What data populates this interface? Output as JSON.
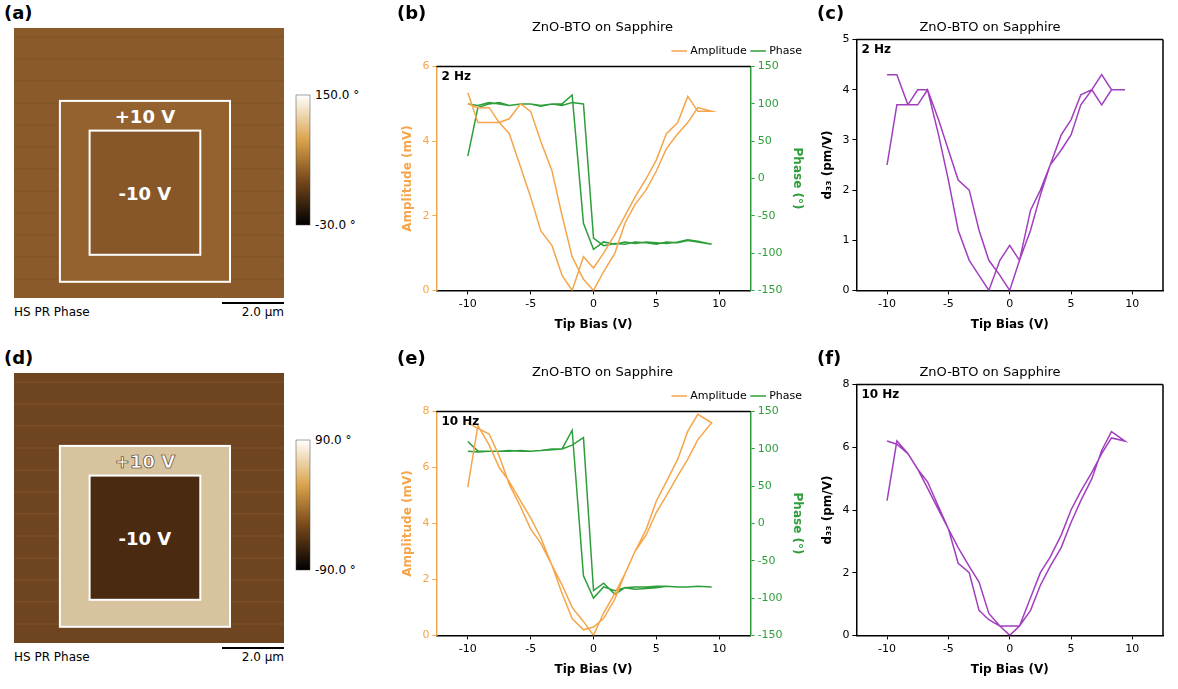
{
  "images": [
    {
      "panel": "(a)",
      "title": "HS PR Phase",
      "scale_bar": "2.0 µm",
      "colorbar": {
        "range": [
          -30,
          150
        ],
        "ticks": [
          {
            "value": 150,
            "label": "150.0 °"
          },
          {
            "value": -30,
            "label": "-30.0 °"
          }
        ]
      },
      "boxes": [
        "+10 V",
        "-10 V"
      ]
    },
    {
      "panel": "(d)",
      "title": "HS PR Phase",
      "scale_bar": "2.0 µm",
      "colorbar": {
        "range": [
          -90,
          90
        ],
        "ticks": [
          {
            "value": 90,
            "label": "90.0 °"
          },
          {
            "value": -90,
            "label": "-90.0 °"
          }
        ]
      },
      "boxes": [
        "+10 V",
        "-10 V"
      ]
    }
  ],
  "chart_data": [
    {
      "panel": "(b)",
      "type": "line",
      "title": "ZnO-BTO on Sapphire",
      "annotation": "2 Hz",
      "x_label": "Tip Bias (V)",
      "y_label": "Amplitude (mV)",
      "y2_label": "Phase (°)",
      "x": [
        -10,
        -9.2,
        -8.3,
        -7.5,
        -6.7,
        -5.8,
        -5,
        -4.2,
        -3.3,
        -2.5,
        -1.7,
        -0.8,
        0,
        0.8,
        1.7,
        2.5,
        3.3,
        4.2,
        5,
        5.8,
        6.7,
        7.5,
        8.3,
        9.4,
        8.3,
        7.5,
        6.7,
        5.8,
        5,
        4.2,
        3.3,
        2.5,
        1.7,
        0.8,
        0,
        -0.8,
        -1.7,
        -2.5,
        -3.3,
        -4.2,
        -5,
        -5.8,
        -6.7,
        -7.5,
        -8.3,
        -9.2,
        -10
      ],
      "series": [
        {
          "name": "Amplitude",
          "color": "#f5a54a",
          "values": [
            5.3,
            4.5,
            4.5,
            4.5,
            4.2,
            3.3,
            2.5,
            1.6,
            1.2,
            0.4,
            0,
            0.9,
            0.6,
            1.0,
            1.5,
            2.0,
            2.5,
            3.0,
            3.5,
            4.2,
            4.5,
            5.2,
            4.8,
            4.8,
            4.9,
            4.5,
            4.2,
            3.8,
            3.2,
            2.7,
            2.3,
            1.8,
            1.0,
            0.5,
            0,
            0.3,
            0.9,
            2.0,
            3.2,
            4.0,
            4.8,
            5.0,
            4.6,
            4.5,
            4.9,
            4.9,
            5.0
          ]
        },
        {
          "name": "Phase",
          "color": "#2e9e3a",
          "axis": "y2",
          "values": [
            30,
            95,
            100,
            102,
            98,
            100,
            100,
            98,
            100,
            100,
            112,
            -60,
            -95,
            -85,
            -88,
            -85,
            -87,
            -85,
            -86,
            -87,
            -85,
            -82,
            -84,
            -88,
            -85,
            -83,
            -86,
            -85,
            -88,
            -86,
            -85,
            -88,
            -87,
            -90,
            -80,
            100,
            102,
            98,
            100,
            97,
            100,
            100,
            98,
            100,
            102,
            98,
            100
          ]
        }
      ],
      "xlim": [
        -12.5,
        12.5
      ],
      "xticks": [
        -10,
        -5,
        0,
        5,
        10
      ],
      "ylim": [
        0,
        6
      ],
      "yticks": [
        0,
        2,
        4,
        6
      ],
      "y2lim": [
        -150,
        150
      ],
      "y2ticks": [
        -150,
        -100,
        -50,
        0,
        50,
        100,
        150
      ],
      "legend": "top-right",
      "grid": false
    },
    {
      "panel": "(c)",
      "type": "line",
      "title": "ZnO-BTO on Sapphire",
      "annotation": "2 Hz",
      "x_label": "Tip Bias (V)",
      "y_label": "d₃₃ (pm/V)",
      "x": [
        -10,
        -9.2,
        -8.3,
        -7.5,
        -6.7,
        -5.8,
        -5,
        -4.2,
        -3.3,
        -2.5,
        -1.7,
        -0.8,
        0,
        0.8,
        1.7,
        2.5,
        3.3,
        4.2,
        5,
        5.8,
        6.7,
        7.5,
        8.3,
        9.4,
        8.3,
        7.5,
        6.7,
        5.8,
        5,
        4.2,
        3.3,
        2.5,
        1.7,
        0.8,
        0,
        -0.8,
        -1.7,
        -2.5,
        -3.3,
        -4.2,
        -5,
        -5.8,
        -6.7,
        -7.5,
        -8.3,
        -9.2,
        -10
      ],
      "series": [
        {
          "name": "d₃₃",
          "color": "#a23fbf",
          "values": [
            2.5,
            3.7,
            3.7,
            4.0,
            4.0,
            3.1,
            2.2,
            1.2,
            0.6,
            0.3,
            0,
            0.6,
            0.9,
            0.6,
            1.6,
            2.0,
            2.5,
            3.1,
            3.4,
            3.9,
            4.0,
            4.3,
            4.0,
            4.0,
            4.0,
            3.7,
            4.0,
            3.7,
            3.1,
            2.8,
            2.5,
            1.9,
            1.2,
            0.6,
            0,
            0.3,
            0.6,
            1.2,
            2.0,
            2.2,
            2.8,
            3.4,
            4.0,
            3.7,
            3.7,
            4.3,
            4.3
          ]
        }
      ],
      "xlim": [
        -12.5,
        12.5
      ],
      "xticks": [
        -10,
        -5,
        0,
        5,
        10
      ],
      "ylim": [
        0,
        5
      ],
      "yticks": [
        0,
        1,
        2,
        3,
        4,
        5
      ],
      "grid": false
    },
    {
      "panel": "(e)",
      "type": "line",
      "title": "ZnO-BTO on Sapphire",
      "annotation": "10 Hz",
      "x_label": "Tip Bias (V)",
      "y_label": "Amplitude (mV)",
      "y2_label": "Phase (°)",
      "x": [
        -10,
        -9.2,
        -8.3,
        -7.5,
        -6.7,
        -5.8,
        -5,
        -4.2,
        -3.3,
        -2.5,
        -1.7,
        -0.8,
        0,
        0.8,
        1.7,
        2.5,
        3.3,
        4.2,
        5,
        5.8,
        6.7,
        7.5,
        8.3,
        9.4,
        8.3,
        7.5,
        6.7,
        5.8,
        5,
        4.2,
        3.3,
        2.5,
        1.7,
        0.8,
        0,
        -0.8,
        -1.7,
        -2.5,
        -3.3,
        -4.2,
        -5,
        -5.8,
        -6.7,
        -7.5,
        -8.3,
        -9.2,
        -10
      ],
      "series": [
        {
          "name": "Amplitude",
          "color": "#f5a54a",
          "values": [
            5.3,
            7.5,
            6.8,
            6.0,
            5.5,
            4.8,
            4.2,
            3.5,
            2.5,
            1.8,
            1.0,
            0.5,
            0,
            0.8,
            1.5,
            2.2,
            3.0,
            3.6,
            4.4,
            5.0,
            5.7,
            6.3,
            7.0,
            7.6,
            7.9,
            7.3,
            6.3,
            5.5,
            4.8,
            3.8,
            3.0,
            2.2,
            1.3,
            0.6,
            0.3,
            0.2,
            0.6,
            1.5,
            2.5,
            3.3,
            3.8,
            4.6,
            5.4,
            6.4,
            7.2,
            7.4,
            7.6
          ]
        },
        {
          "name": "Phase",
          "color": "#2e9e3a",
          "axis": "y2",
          "values": [
            110,
            97,
            97,
            97,
            97,
            98,
            97,
            98,
            100,
            100,
            125,
            -70,
            -100,
            -85,
            -90,
            -86,
            -85,
            -85,
            -84,
            -84,
            -85,
            -85,
            -84,
            -85,
            -84,
            -85,
            -85,
            -84,
            -86,
            -87,
            -88,
            -86,
            -95,
            -80,
            -90,
            115,
            105,
            100,
            99,
            98,
            97,
            97,
            98,
            97,
            97,
            96,
            97
          ]
        }
      ],
      "xlim": [
        -12.5,
        12.5
      ],
      "xticks": [
        -10,
        -5,
        0,
        5,
        10
      ],
      "ylim": [
        0,
        8
      ],
      "yticks": [
        0,
        2,
        4,
        6,
        8
      ],
      "y2lim": [
        -150,
        150
      ],
      "y2ticks": [
        -150,
        -100,
        -50,
        0,
        50,
        100,
        150
      ],
      "legend": "top-right",
      "grid": false
    },
    {
      "panel": "(f)",
      "type": "line",
      "title": "ZnO-BTO on Sapphire",
      "annotation": "10 Hz",
      "x_label": "Tip Bias (V)",
      "y_label": "d₃₃ (pm/V)",
      "x": [
        -10,
        -9.2,
        -8.3,
        -7.5,
        -6.7,
        -5.8,
        -5,
        -4.2,
        -3.3,
        -2.5,
        -1.7,
        -0.8,
        0,
        0.8,
        1.7,
        2.5,
        3.3,
        4.2,
        5,
        5.8,
        6.7,
        7.5,
        8.3,
        9.4,
        8.3,
        7.5,
        6.7,
        5.8,
        5,
        4.2,
        3.3,
        2.5,
        1.7,
        0.8,
        0,
        -0.8,
        -1.7,
        -2.5,
        -3.3,
        -4.2,
        -5,
        -5.8,
        -6.7,
        -7.5,
        -8.3,
        -9.2,
        -10
      ],
      "series": [
        {
          "name": "d₃₃",
          "color": "#a23fbf",
          "values": [
            4.3,
            6.2,
            5.8,
            5.3,
            4.7,
            4.0,
            3.4,
            2.3,
            2.0,
            0.8,
            0.5,
            0.3,
            0,
            0.3,
            1.2,
            2.0,
            2.5,
            3.2,
            4.0,
            4.6,
            5.2,
            5.8,
            6.3,
            6.2,
            6.5,
            5.9,
            5.0,
            4.3,
            3.6,
            2.8,
            2.2,
            1.6,
            0.8,
            0.3,
            0.3,
            0.3,
            0.7,
            1.7,
            2.2,
            2.8,
            3.4,
            4.1,
            4.9,
            5.3,
            5.8,
            6.1,
            6.2
          ]
        }
      ],
      "xlim": [
        -12.5,
        12.5
      ],
      "xticks": [
        -10,
        -5,
        0,
        5,
        10
      ],
      "ylim": [
        0,
        8
      ],
      "yticks": [
        0,
        2,
        4,
        6,
        8
      ],
      "grid": false
    }
  ]
}
